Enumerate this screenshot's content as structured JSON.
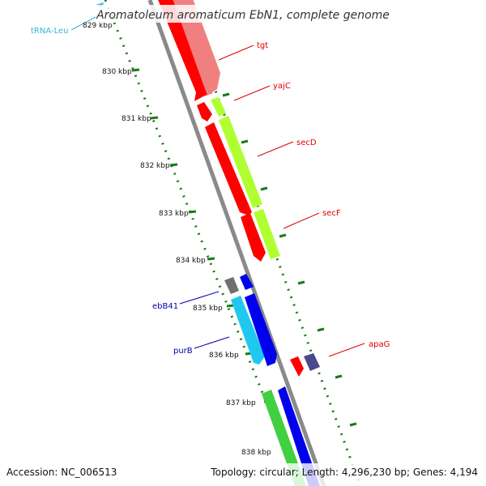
{
  "title": "Aromatoleum aromaticum EbN1, complete genome",
  "accession": "Accession: NC_006513",
  "summary": "Topology: circular; Length: 4,296,230 bp; Genes: 4,194",
  "colors": {
    "backbone": "#8a8a8a",
    "ticks": "#1a7a1a",
    "red": "#ff0000",
    "pink": "#f08080",
    "lime": "#b0ff30",
    "blue": "#0000ee",
    "cyan": "#20c8f0",
    "green": "#40d040",
    "gray": "#707070",
    "navy": "#4a4a8a"
  },
  "kbp_labels": [
    "829 kbp",
    "830 kbp",
    "831 kbp",
    "832 kbp",
    "833 kbp",
    "834 kbp",
    "835 kbp",
    "836 kbp",
    "837 kbp",
    "838 kbp"
  ],
  "gene_labels": [
    {
      "text": "tRNA-Leu",
      "color": "#30b8d8"
    },
    {
      "text": "tgt",
      "color": "#dd0000"
    },
    {
      "text": "yajC",
      "color": "#dd0000"
    },
    {
      "text": "secD",
      "color": "#dd0000"
    },
    {
      "text": "secF",
      "color": "#dd0000"
    },
    {
      "text": "apaG",
      "color": "#dd0000"
    },
    {
      "text": "ebB41",
      "color": "#0000aa"
    },
    {
      "text": "purB",
      "color": "#0000aa"
    }
  ]
}
